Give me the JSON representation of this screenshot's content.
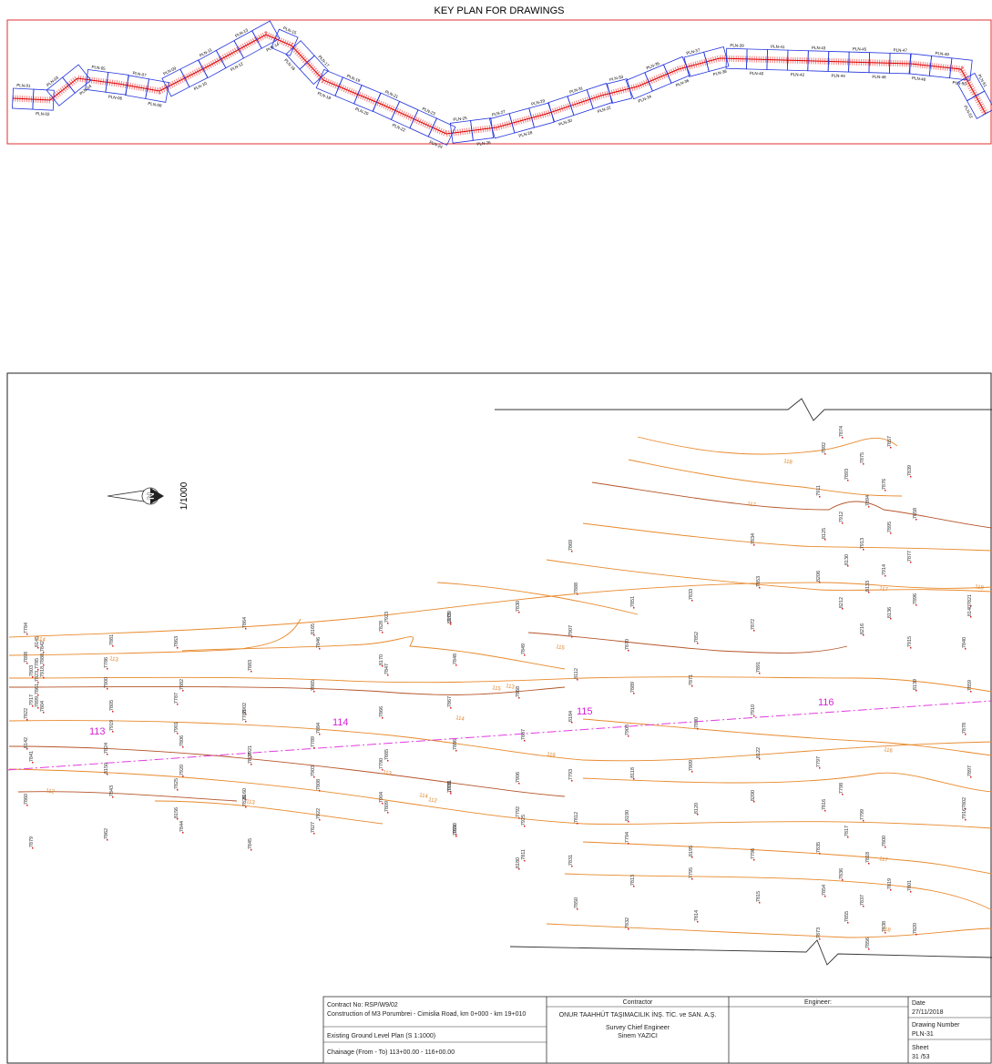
{
  "key_plan": {
    "title": "KEY PLAN FOR DRAWINGS",
    "sheets": [
      "PLN-01",
      "PLN-02",
      "PLN-03",
      "PLN-04",
      "PLN-05",
      "PLN-06",
      "PLN-07",
      "PLN-08",
      "PLN-09",
      "PLN-10",
      "PLN-11",
      "PLN-12",
      "PLN-13",
      "PLN-14",
      "PLN-15",
      "PLN-16",
      "PLN-17",
      "PLN-18",
      "PLN-19",
      "PLN-20",
      "PLN-21",
      "PLN-22",
      "PLN-23",
      "PLN-24",
      "PLN-25",
      "PLN-26",
      "PLN-27",
      "PLN-28",
      "PLN-29",
      "PLN-30",
      "PLN-31",
      "PLN-32",
      "PLN-33",
      "PLN-34",
      "PLN-35",
      "PLN-36",
      "PLN-37",
      "PLN-38",
      "PLN-39",
      "PLN-40",
      "PLN-41",
      "PLN-42",
      "PLN-43",
      "PLN-44",
      "PLN-45",
      "PLN-46",
      "PLN-47",
      "PLN-48",
      "PLN-49",
      "PLN-50",
      "PLN-51",
      "PLN-52"
    ]
  },
  "plan": {
    "scale": "1/1000",
    "chainages": [
      "113",
      "114",
      "115",
      "116"
    ],
    "contour_labels": [
      "114",
      "113",
      "112",
      "113",
      "114",
      "115",
      "116",
      "115",
      "114",
      "113",
      "112",
      "113",
      "117",
      "118",
      "118",
      "117",
      "116",
      "117",
      "118"
    ],
    "survey_points": [
      "7784",
      "7785",
      "7786",
      "7787",
      "7788",
      "7789",
      "7790",
      "7791",
      "7792",
      "7793",
      "7794",
      "7795",
      "7796",
      "7797",
      "7798",
      "7799",
      "7800",
      "7801",
      "7802",
      "7803",
      "7804",
      "7805",
      "7806",
      "7807",
      "7808",
      "7809",
      "7810",
      "7811",
      "7812",
      "7813",
      "7814",
      "7815",
      "7816",
      "7817",
      "7818",
      "7819",
      "7820",
      "7821",
      "7822",
      "7823",
      "7824",
      "7825",
      "7826",
      "7827",
      "7828",
      "7829",
      "7830",
      "7831",
      "7832",
      "7833",
      "7834",
      "7835",
      "7836",
      "7837",
      "7838",
      "7839",
      "7840",
      "7841",
      "7842",
      "7843",
      "7844",
      "7845",
      "7846",
      "7847",
      "7848",
      "7849",
      "7850",
      "7851",
      "7852",
      "7853",
      "7854",
      "7855",
      "7856",
      "7857",
      "7858",
      "7859",
      "7860",
      "7861",
      "7862",
      "7863",
      "7864",
      "7865",
      "7866",
      "7867",
      "7868",
      "7869",
      "7870",
      "7871",
      "7872",
      "7873",
      "7874",
      "7875",
      "7876",
      "7877",
      "7878",
      "7879",
      "7880",
      "7881",
      "7882",
      "7883",
      "7884",
      "7885",
      "7886",
      "7887",
      "7888",
      "7889",
      "7890",
      "7891",
      "7892",
      "7893",
      "7894",
      "7895",
      "7896",
      "7897",
      "7898",
      "7899",
      "7900",
      "7901",
      "7902",
      "7903",
      "7904",
      "7905",
      "7906",
      "7907",
      "7908",
      "7909",
      "7910",
      "7911",
      "7912",
      "7913",
      "7914",
      "7915",
      "7916",
      "7917",
      "7918",
      "7919",
      "7920",
      "7921",
      "7922",
      "7923",
      "7924",
      "7925",
      "8112",
      "8118",
      "8120",
      "8122",
      "8125",
      "8130",
      "8133",
      "8136",
      "8139",
      "8140",
      "8142",
      "8145",
      "8150",
      "8156",
      "8160",
      "8165",
      "8170",
      "8175",
      "8180",
      "8184",
      "8190",
      "8195",
      "8200",
      "8206",
      "8212",
      "8216"
    ]
  },
  "title_block": {
    "contract": [
      "Contract No: RSP/W9/02",
      "Construction of M3 Porumbrei - Cimislia Road, km 0+000 - km 19+010",
      "Existing Ground Level Plan (S 1:1000)",
      "Chainage (From - To)  113+00.00 - 116+00.00"
    ],
    "contractor_heading": "Contractor",
    "contractor": "ONUR TAAHHÜT TAŞIMACILIK İNŞ. TİC. ve SAN. A.Ş.",
    "role": "Survey Chief Engineer",
    "person": "Sinem YAZICI",
    "engineer": "Engineer:",
    "date_heading": "Date",
    "date": "27/11/2018",
    "drawing_heading": "Drawing Number",
    "drawing": "PLN-31",
    "sheet_heading": "Sheet",
    "sheet": "31 /53"
  }
}
